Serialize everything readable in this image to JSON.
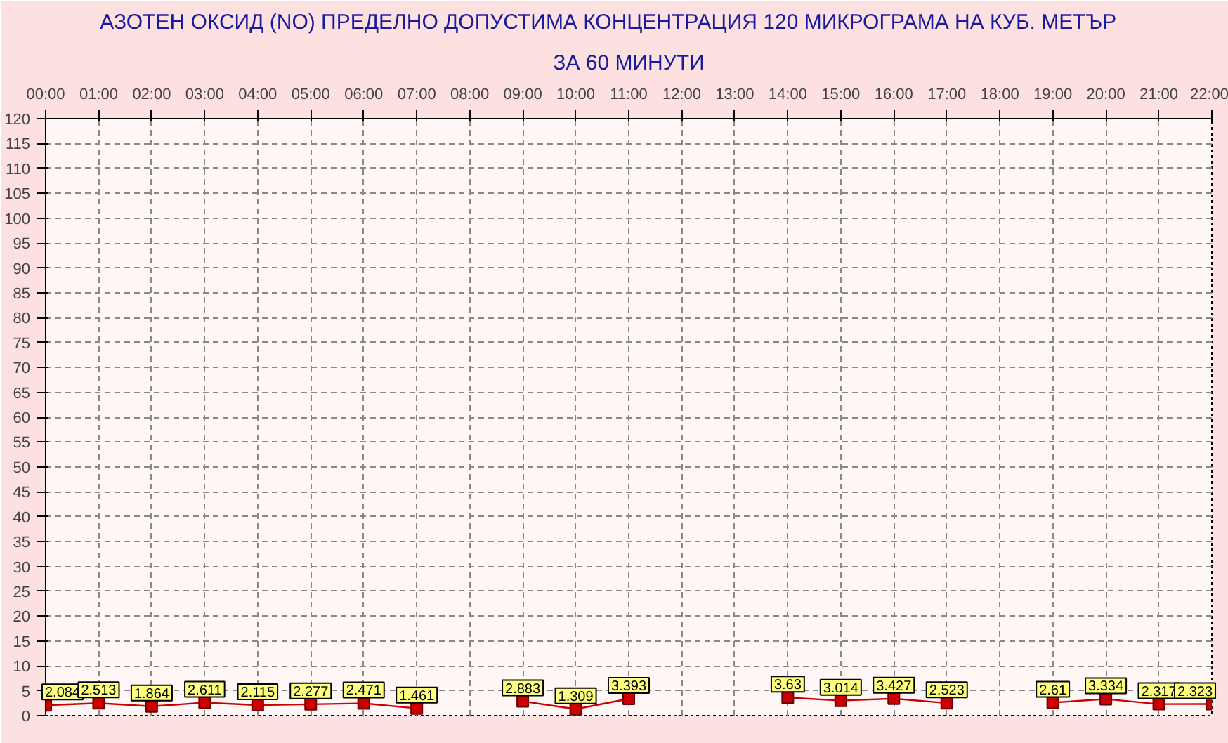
{
  "chart_data": {
    "type": "line",
    "title": "АЗОТЕН ОКСИД   (NO)     ПРЕДЕЛНО ДОПУСТИМА КОНЦЕНТРАЦИЯ 120 МИКРОГРАМА  НА КУБ. МЕТЪР",
    "subtitle": "ЗА 60 МИНУТИ",
    "categories": [
      "00:00",
      "01:00",
      "02:00",
      "03:00",
      "04:00",
      "05:00",
      "06:00",
      "07:00",
      "08:00",
      "09:00",
      "10:00",
      "11:00",
      "12:00",
      "13:00",
      "14:00",
      "15:00",
      "16:00",
      "17:00",
      "18:00",
      "19:00",
      "20:00",
      "21:00",
      "22:00"
    ],
    "series": [
      {
        "color": "#cc0000",
        "values": [
          2.084,
          2.513,
          1.864,
          2.611,
          2.115,
          2.277,
          2.471,
          1.461,
          null,
          2.883,
          1.309,
          3.393,
          null,
          null,
          3.63,
          3.014,
          3.427,
          2.523,
          null,
          2.61,
          3.334,
          2.317,
          2.323
        ]
      }
    ],
    "ylim": [
      0,
      120
    ],
    "yticks": [
      0,
      5,
      10,
      15,
      20,
      25,
      30,
      35,
      40,
      45,
      50,
      55,
      60,
      65,
      70,
      75,
      80,
      85,
      90,
      95,
      100,
      105,
      110,
      115,
      120
    ],
    "grid": true,
    "marker": "square",
    "line_style": "solid",
    "data_labels": true
  }
}
